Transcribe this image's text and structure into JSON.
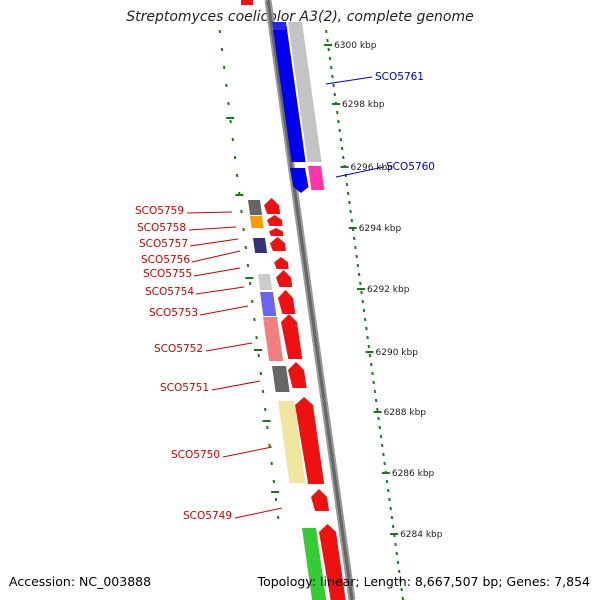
{
  "title": "Streptomyces coelicolor A3(2), complete genome",
  "footer": {
    "accession": "Accession: NC_003888",
    "summary": "Topology: linear; Length: 8,667,507 bp; Genes: 7,854"
  },
  "colors": {
    "backbone": "#777777",
    "tick": "#1a7a1a",
    "forward_gene": "#ee1111",
    "highlight_gene": "#0000ee",
    "label_red": "#cc0000",
    "label_blue": "#0000bb"
  },
  "ticks": [
    "6300 kbp",
    "6298 kbp",
    "6296 kbp",
    "6294 kbp",
    "6292 kbp",
    "6290 kbp",
    "6288 kbp",
    "6286 kbp",
    "6284 kbp"
  ],
  "genes_blue": [
    "SCO5761",
    "SCO5760"
  ],
  "genes_red": [
    "SCO5759",
    "SCO5758",
    "SCO5757",
    "SCO5756",
    "SCO5755",
    "SCO5754",
    "SCO5753",
    "SCO5752",
    "SCO5751",
    "SCO5750",
    "SCO5749"
  ]
}
